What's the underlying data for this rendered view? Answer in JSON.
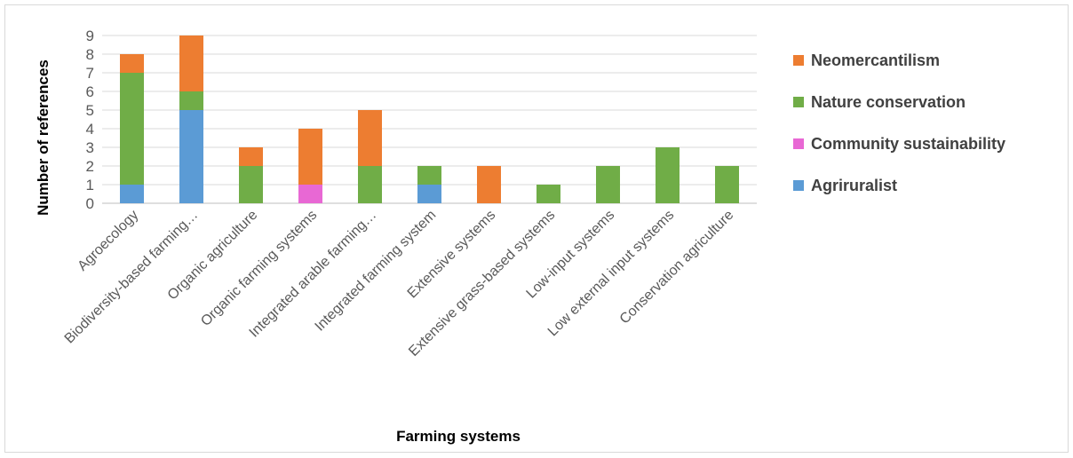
{
  "chart_data": {
    "type": "bar",
    "stacked": true,
    "title": "",
    "xlabel": "Farming systems",
    "ylabel": "Number of references",
    "ylim": [
      0,
      9
    ],
    "yticks": [
      0,
      1,
      2,
      3,
      4,
      5,
      6,
      7,
      8,
      9
    ],
    "grid": true,
    "legend_position": "right",
    "categories": [
      "Agroecology",
      "Biodiversity-based farming…",
      "Organic agriculture",
      "Organic farming systems",
      "Integrated arable farming…",
      "Integrated farming system",
      "Extensive systems",
      "Extensive grass-based systems",
      "Low-input systems",
      "Low external input systems",
      "Conservation agriculture"
    ],
    "series": [
      {
        "name": "Agriruralist",
        "color": "#5b9bd5",
        "values": [
          1,
          5,
          0,
          0,
          0,
          1,
          0,
          0,
          0,
          0,
          0
        ]
      },
      {
        "name": "Community sustainability",
        "color": "#e868d4",
        "values": [
          0,
          0,
          0,
          1,
          0,
          0,
          0,
          0,
          0,
          0,
          0
        ]
      },
      {
        "name": "Nature conservation",
        "color": "#70ad47",
        "values": [
          6,
          1,
          2,
          0,
          2,
          1,
          0,
          1,
          2,
          3,
          2
        ]
      },
      {
        "name": "Neomercantilism",
        "color": "#ed7d31",
        "values": [
          1,
          3,
          1,
          3,
          3,
          0,
          2,
          0,
          0,
          0,
          0
        ]
      }
    ],
    "legend_order": [
      "Neomercantilism",
      "Nature conservation",
      "Community sustainability",
      "Agriruralist"
    ]
  }
}
